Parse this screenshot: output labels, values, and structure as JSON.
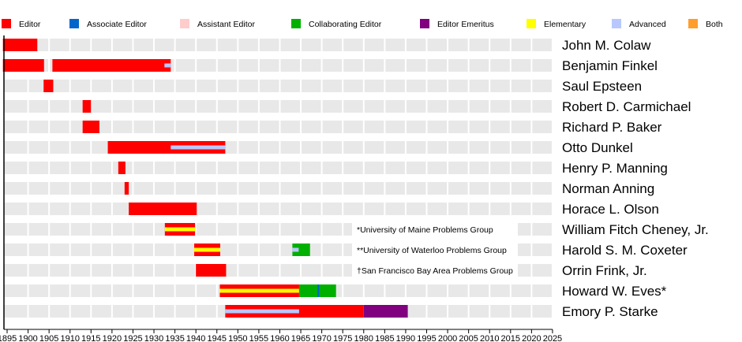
{
  "chart_data": {
    "type": "timeline",
    "xlim": [
      1894,
      2025
    ],
    "x_ticks": [
      1895,
      1900,
      1905,
      1910,
      1915,
      1920,
      1925,
      1930,
      1935,
      1940,
      1945,
      1950,
      1955,
      1960,
      1965,
      1970,
      1975,
      1980,
      1985,
      1990,
      1995,
      2000,
      2005,
      2010,
      2015,
      2020,
      2025
    ],
    "legend": [
      {
        "label": "Editor",
        "color": "#ff0000"
      },
      {
        "label": "Associate Editor",
        "color": "#0066cc"
      },
      {
        "label": "Assistant Editor",
        "color": "#ffcccc"
      },
      {
        "label": "Collaborating Editor",
        "color": "#00b000"
      },
      {
        "label": "Editor Emeritus",
        "color": "#800080"
      },
      {
        "label": "Elementary",
        "color": "#ffff00"
      },
      {
        "label": "Advanced",
        "color": "#b8c8ff"
      },
      {
        "label": "Both",
        "color": "#ff9e2c"
      }
    ],
    "rows": [
      {
        "name": "John M. Colaw",
        "segments": [
          {
            "role": "Editor",
            "start": 1894,
            "end": 1902.2
          }
        ]
      },
      {
        "name": "Benjamin Finkel",
        "segments": [
          {
            "role": "Editor",
            "start": 1894,
            "end": 1903.8
          },
          {
            "role": "Editor",
            "start": 1905.8,
            "end": 1934
          },
          {
            "role": "Advanced",
            "start": 1932.5,
            "end": 1934
          }
        ]
      },
      {
        "name": "Saul Epsteen",
        "segments": [
          {
            "role": "Editor",
            "start": 1903.7,
            "end": 1906
          }
        ]
      },
      {
        "name": "Robert D. Carmichael",
        "segments": [
          {
            "role": "Editor",
            "start": 1913,
            "end": 1915
          }
        ]
      },
      {
        "name": "Richard P. Baker",
        "segments": [
          {
            "role": "Editor",
            "start": 1913,
            "end": 1917
          }
        ]
      },
      {
        "name": "Otto Dunkel",
        "segments": [
          {
            "role": "Editor",
            "start": 1919,
            "end": 1947
          },
          {
            "role": "Advanced",
            "start": 1934,
            "end": 1947
          }
        ]
      },
      {
        "name": "Henry P. Manning",
        "segments": [
          {
            "role": "Editor",
            "start": 1921.5,
            "end": 1923.2
          }
        ]
      },
      {
        "name": "Norman Anning",
        "segments": [
          {
            "role": "Editor",
            "start": 1923,
            "end": 1924
          }
        ]
      },
      {
        "name": "Horace L. Olson",
        "segments": [
          {
            "role": "Editor",
            "start": 1924,
            "end": 1940.2
          }
        ]
      },
      {
        "name": "William Fitch Cheney, Jr.",
        "segments": [
          {
            "role": "Editor",
            "start": 1932.6,
            "end": 1939.8
          },
          {
            "role": "Elementary",
            "start": 1932.6,
            "end": 1939.8
          }
        ]
      },
      {
        "name": "Harold S. M. Coxeter",
        "segments": [
          {
            "role": "Editor",
            "start": 1939.6,
            "end": 1945.8
          },
          {
            "role": "Elementary",
            "start": 1939.6,
            "end": 1945.8
          },
          {
            "role": "Collaborating Editor",
            "start": 1963,
            "end": 1967.2
          },
          {
            "role": "Advanced",
            "start": 1963,
            "end": 1964.5
          }
        ]
      },
      {
        "name": "Orrin Frink, Jr.",
        "segments": [
          {
            "role": "Editor",
            "start": 1940,
            "end": 1947.2
          }
        ]
      },
      {
        "name": "Howard W. Eves*",
        "segments": [
          {
            "role": "Editor",
            "start": 1945.7,
            "end": 1964.6
          },
          {
            "role": "Elementary",
            "start": 1945.7,
            "end": 1964.6
          },
          {
            "role": "Collaborating Editor",
            "start": 1964.6,
            "end": 1973.4
          },
          {
            "role": "Associate Editor",
            "start": 1969,
            "end": 1969.4
          }
        ]
      },
      {
        "name": "Emory P. Starke",
        "segments": [
          {
            "role": "Editor",
            "start": 1947,
            "end": 1980
          },
          {
            "role": "Advanced",
            "start": 1947,
            "end": 1964.6
          },
          {
            "role": "Editor Emeritus",
            "start": 1980,
            "end": 1990.5
          }
        ]
      }
    ],
    "annotations": [
      {
        "row": 9,
        "text": "*University of Maine Problems Group"
      },
      {
        "row": 10,
        "text": "**University of Waterloo Problems Group"
      },
      {
        "row": 11,
        "text": "†San Francisco Bay Area Problems Group"
      }
    ],
    "grid": true
  }
}
